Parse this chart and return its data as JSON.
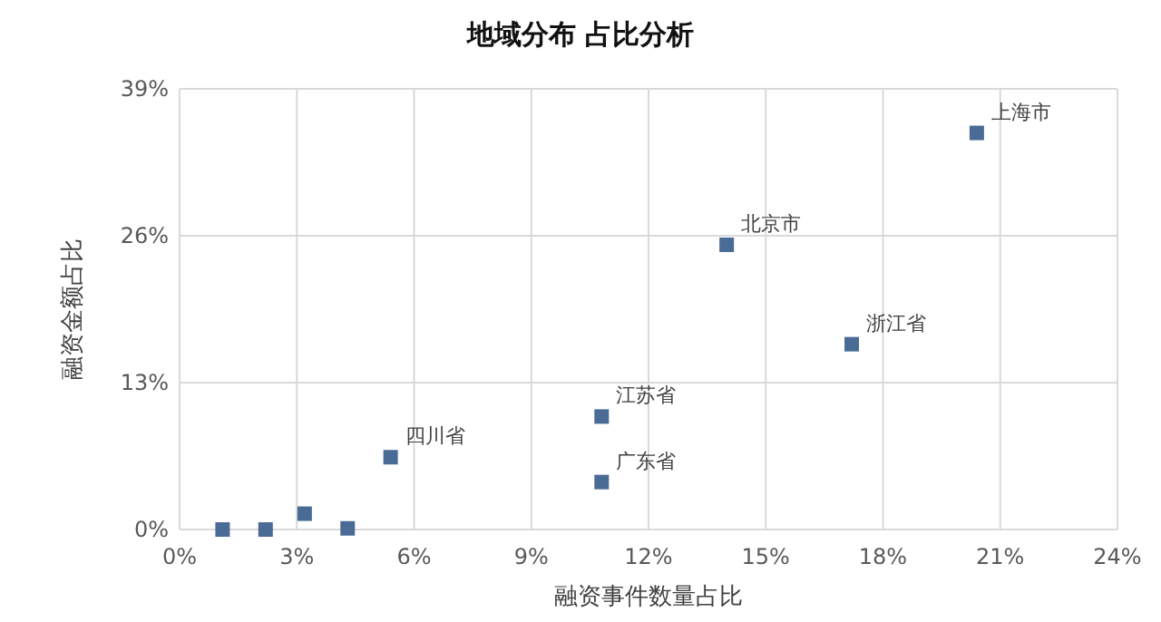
{
  "chart_data": {
    "type": "scatter",
    "title": "地域分布 占比分析",
    "xlabel": "融资事件数量占比",
    "ylabel": "融资金额占比",
    "x": [
      20.4,
      14.0,
      17.2,
      10.8,
      10.8,
      5.4,
      1.1,
      2.2,
      3.2,
      4.3
    ],
    "series": [
      {
        "color": "#4a6b96",
        "values": [
          35.1,
          25.2,
          16.4,
          10.0,
          4.2,
          6.4,
          0,
          0,
          1.4,
          0.1
        ]
      }
    ],
    "xlim": [
      0,
      24
    ],
    "ylim": [
      0,
      39
    ],
    "xticks": [
      {
        "value": 0,
        "label": "0%"
      },
      {
        "value": 3,
        "label": "3%"
      },
      {
        "value": 6,
        "label": "6%"
      },
      {
        "value": 9,
        "label": "9%"
      },
      {
        "value": 12,
        "label": "12%"
      },
      {
        "value": 15,
        "label": "15%"
      },
      {
        "value": 18,
        "label": "18%"
      },
      {
        "value": 21,
        "label": "21%"
      },
      {
        "value": 24,
        "label": "24%"
      }
    ],
    "yticks": [
      {
        "value": 0,
        "label": "0%"
      },
      {
        "value": 13,
        "label": "13%"
      },
      {
        "value": 26,
        "label": "26%"
      },
      {
        "value": 39,
        "label": "39%"
      }
    ],
    "annotations": [
      {
        "text": "上海市",
        "x": 20.4,
        "y": 35.1
      },
      {
        "text": "北京市",
        "x": 14.0,
        "y": 25.2
      },
      {
        "text": "浙江省",
        "x": 17.2,
        "y": 16.4
      },
      {
        "text": "江苏省",
        "x": 10.8,
        "y": 10.0
      },
      {
        "text": "广东省",
        "x": 10.8,
        "y": 4.2
      },
      {
        "text": "四川省",
        "x": 5.4,
        "y": 6.4
      }
    ],
    "grid": true,
    "marker": "square"
  }
}
